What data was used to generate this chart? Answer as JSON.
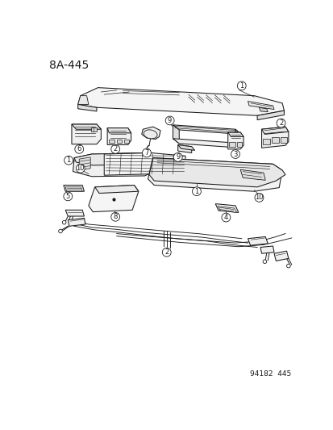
{
  "title": "8A-445",
  "footer": "94182  445",
  "bg_color": "#ffffff",
  "line_color": "#1a1a1a",
  "title_fontsize": 10,
  "footer_fontsize": 6.5,
  "figsize": [
    4.14,
    5.33
  ],
  "dpi": 100
}
